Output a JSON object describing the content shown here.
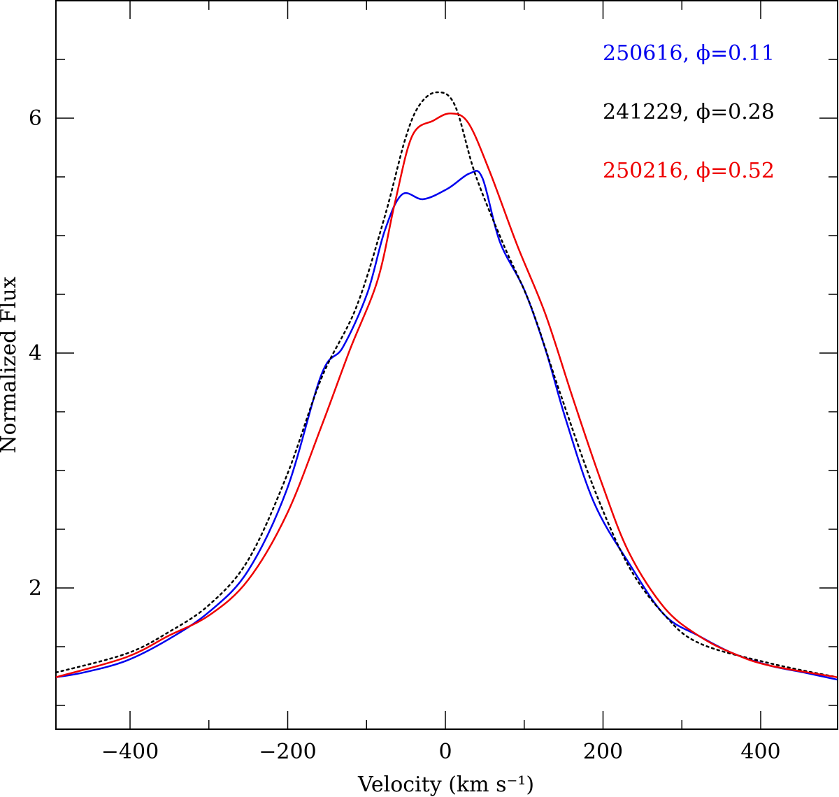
{
  "chart_data": {
    "type": "line",
    "title": "",
    "xlabel": "Velocity (km s⁻¹)",
    "ylabel": "Normalized Flux",
    "xlim": [
      -500,
      500
    ],
    "ylim": [
      0.8,
      7.0
    ],
    "xticks": [
      -400,
      -200,
      0,
      200,
      400
    ],
    "yticks": [
      2,
      4,
      6
    ],
    "xminor_step": 100,
    "yminor_step": 0.5,
    "grid": false,
    "legend_placement": "top-right",
    "series": [
      {
        "name": "250616, ϕ=0.11",
        "color": "#0000ee",
        "style": "solid",
        "x": [
          -494,
          -459,
          -405,
          -352,
          -299,
          -250,
          -201,
          -157,
          -130,
          -99,
          -77,
          -55,
          -28,
          3,
          31,
          47,
          69,
          100,
          127,
          153,
          189,
          233,
          278,
          322,
          366,
          411,
          455,
          497
        ],
        "y": [
          1.24,
          1.28,
          1.38,
          1.56,
          1.8,
          2.15,
          2.84,
          3.82,
          4.05,
          4.51,
          5.04,
          5.35,
          5.31,
          5.4,
          5.53,
          5.49,
          4.95,
          4.54,
          4.03,
          3.43,
          2.72,
          2.21,
          1.77,
          1.59,
          1.44,
          1.34,
          1.28,
          1.22
        ]
      },
      {
        "name": "241229, ϕ=0.28",
        "color": "#000000",
        "style": "dotted",
        "x": [
          -494,
          -405,
          -352,
          -299,
          -250,
          -201,
          -157,
          -113,
          -77,
          -51,
          -33,
          -11,
          12,
          38,
          74,
          109,
          145,
          189,
          233,
          278,
          322,
          411,
          497
        ],
        "y": [
          1.28,
          1.44,
          1.62,
          1.86,
          2.24,
          2.96,
          3.79,
          4.39,
          5.16,
          5.82,
          6.11,
          6.22,
          6.11,
          5.52,
          4.92,
          4.39,
          3.67,
          2.84,
          2.18,
          1.77,
          1.53,
          1.36,
          1.24
        ]
      },
      {
        "name": "250216, ϕ=0.52",
        "color": "#ee0000",
        "style": "solid",
        "x": [
          -494,
          -405,
          -352,
          -299,
          -250,
          -201,
          -157,
          -121,
          -86,
          -64,
          -42,
          -15,
          7,
          29,
          56,
          91,
          127,
          162,
          198,
          233,
          278,
          322,
          366,
          411,
          497
        ],
        "y": [
          1.24,
          1.41,
          1.59,
          1.77,
          2.07,
          2.63,
          3.38,
          4.03,
          4.62,
          5.28,
          5.85,
          5.98,
          6.04,
          5.96,
          5.55,
          4.92,
          4.33,
          3.61,
          2.9,
          2.3,
          1.83,
          1.59,
          1.44,
          1.34,
          1.24
        ]
      }
    ]
  }
}
